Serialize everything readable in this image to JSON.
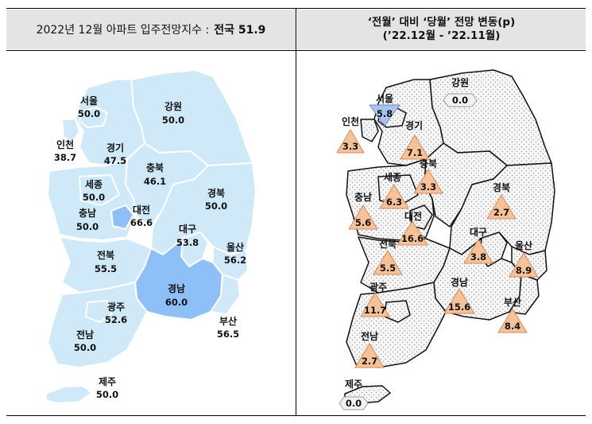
{
  "left_panel": {
    "title_prefix": "2022년 12월 아파트 입주전망지수 :",
    "title_highlight": "전국 51.9"
  },
  "right_panel": {
    "title_line1": "‘전월’ 대비 ‘당월’ 전망 변동(p)",
    "title_line2": "(’22.12월  -  ’22.11월)"
  },
  "colors": {
    "light_region": "#cfe9f9",
    "highlight_region": "#8fbff7",
    "triangle_up": "#f7c29a",
    "triangle_down": "#a9c3ee",
    "neutral_arrow": "#f2f2f2",
    "right_map_fill": "#f4f4f4"
  },
  "left_regions": [
    {
      "name": "서울",
      "value": "50.0"
    },
    {
      "name": "강원",
      "value": "50.0"
    },
    {
      "name": "인천",
      "value": "38.7"
    },
    {
      "name": "경기",
      "value": "47.5"
    },
    {
      "name": "충북",
      "value": "46.1"
    },
    {
      "name": "세종",
      "value": "50.0"
    },
    {
      "name": "대전",
      "value": "66.6"
    },
    {
      "name": "경북",
      "value": "50.0"
    },
    {
      "name": "충남",
      "value": "50.0"
    },
    {
      "name": "대구",
      "value": "53.8"
    },
    {
      "name": "울산",
      "value": "56.2"
    },
    {
      "name": "전북",
      "value": "55.5"
    },
    {
      "name": "경남",
      "value": "60.0"
    },
    {
      "name": "광주",
      "value": "52.6"
    },
    {
      "name": "부산",
      "value": "56.5"
    },
    {
      "name": "전남",
      "value": "50.0"
    },
    {
      "name": "제주",
      "value": "50.0"
    }
  ],
  "right_regions": [
    {
      "name": "서울",
      "value": "5.8",
      "direction": "down"
    },
    {
      "name": "강원",
      "value": "0.0",
      "direction": "flat"
    },
    {
      "name": "인천",
      "value": "3.3",
      "direction": "up"
    },
    {
      "name": "경기",
      "value": "7.1",
      "direction": "up"
    },
    {
      "name": "충북",
      "value": "3.3",
      "direction": "up"
    },
    {
      "name": "세종",
      "value": "6.3",
      "direction": "up"
    },
    {
      "name": "충남",
      "value": "5.6",
      "direction": "up"
    },
    {
      "name": "대전",
      "value": "16.6",
      "direction": "up"
    },
    {
      "name": "경북",
      "value": "2.7",
      "direction": "up"
    },
    {
      "name": "대구",
      "value": "3.8",
      "direction": "up"
    },
    {
      "name": "전북",
      "value": "5.5",
      "direction": "up"
    },
    {
      "name": "울산",
      "value": "8.9",
      "direction": "up"
    },
    {
      "name": "광주",
      "value": "11.7",
      "direction": "up"
    },
    {
      "name": "경남",
      "value": "15.6",
      "direction": "up"
    },
    {
      "name": "부산",
      "value": "8.4",
      "direction": "up"
    },
    {
      "name": "전남",
      "value": "2.7",
      "direction": "up"
    },
    {
      "name": "제주",
      "value": "0.0",
      "direction": "flat"
    }
  ]
}
